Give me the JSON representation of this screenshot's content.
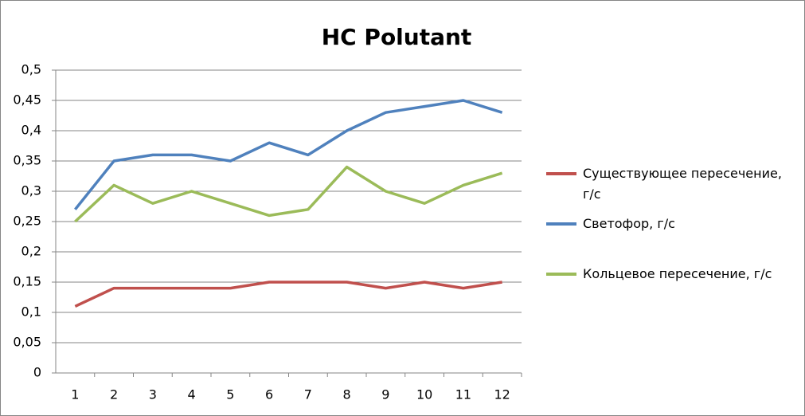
{
  "chart_data": {
    "type": "line",
    "title": "HC Polutant",
    "categories": [
      "1",
      "2",
      "3",
      "4",
      "5",
      "6",
      "7",
      "8",
      "9",
      "10",
      "11",
      "12"
    ],
    "series": [
      {
        "name": "Существующее пересечение, г/с",
        "color": "#c0504d",
        "values": [
          0.11,
          0.14,
          0.14,
          0.14,
          0.14,
          0.15,
          0.15,
          0.15,
          0.14,
          0.15,
          0.14,
          0.15
        ]
      },
      {
        "name": "Светофор, г/с",
        "color": "#4f81bd",
        "values": [
          0.27,
          0.35,
          0.36,
          0.36,
          0.35,
          0.38,
          0.36,
          0.4,
          0.43,
          0.44,
          0.45,
          0.43
        ]
      },
      {
        "name": "Кольцевое пересечение, г/с",
        "color": "#9bbb59",
        "values": [
          0.25,
          0.31,
          0.28,
          0.3,
          0.28,
          0.26,
          0.27,
          0.34,
          0.3,
          0.28,
          0.31,
          0.33
        ]
      }
    ],
    "ylim": [
      0,
      0.5
    ],
    "yticks": [
      0,
      {
        "value": 0.05,
        "label": "0,05"
      },
      {
        "value": 0.1,
        "label": "0,1"
      },
      {
        "value": 0.15,
        "label": "0,15"
      },
      {
        "value": 0.2,
        "label": "0,2"
      },
      {
        "value": 0.25,
        "label": "0,25"
      },
      {
        "value": 0.3,
        "label": "0,3"
      },
      {
        "value": 0.35,
        "label": "0,35"
      },
      {
        "value": 0.4,
        "label": "0,4"
      },
      {
        "value": 0.45,
        "label": "0,45"
      },
      {
        "value": 0.5,
        "label": "0,5"
      }
    ],
    "grid": true,
    "legend": "right"
  }
}
